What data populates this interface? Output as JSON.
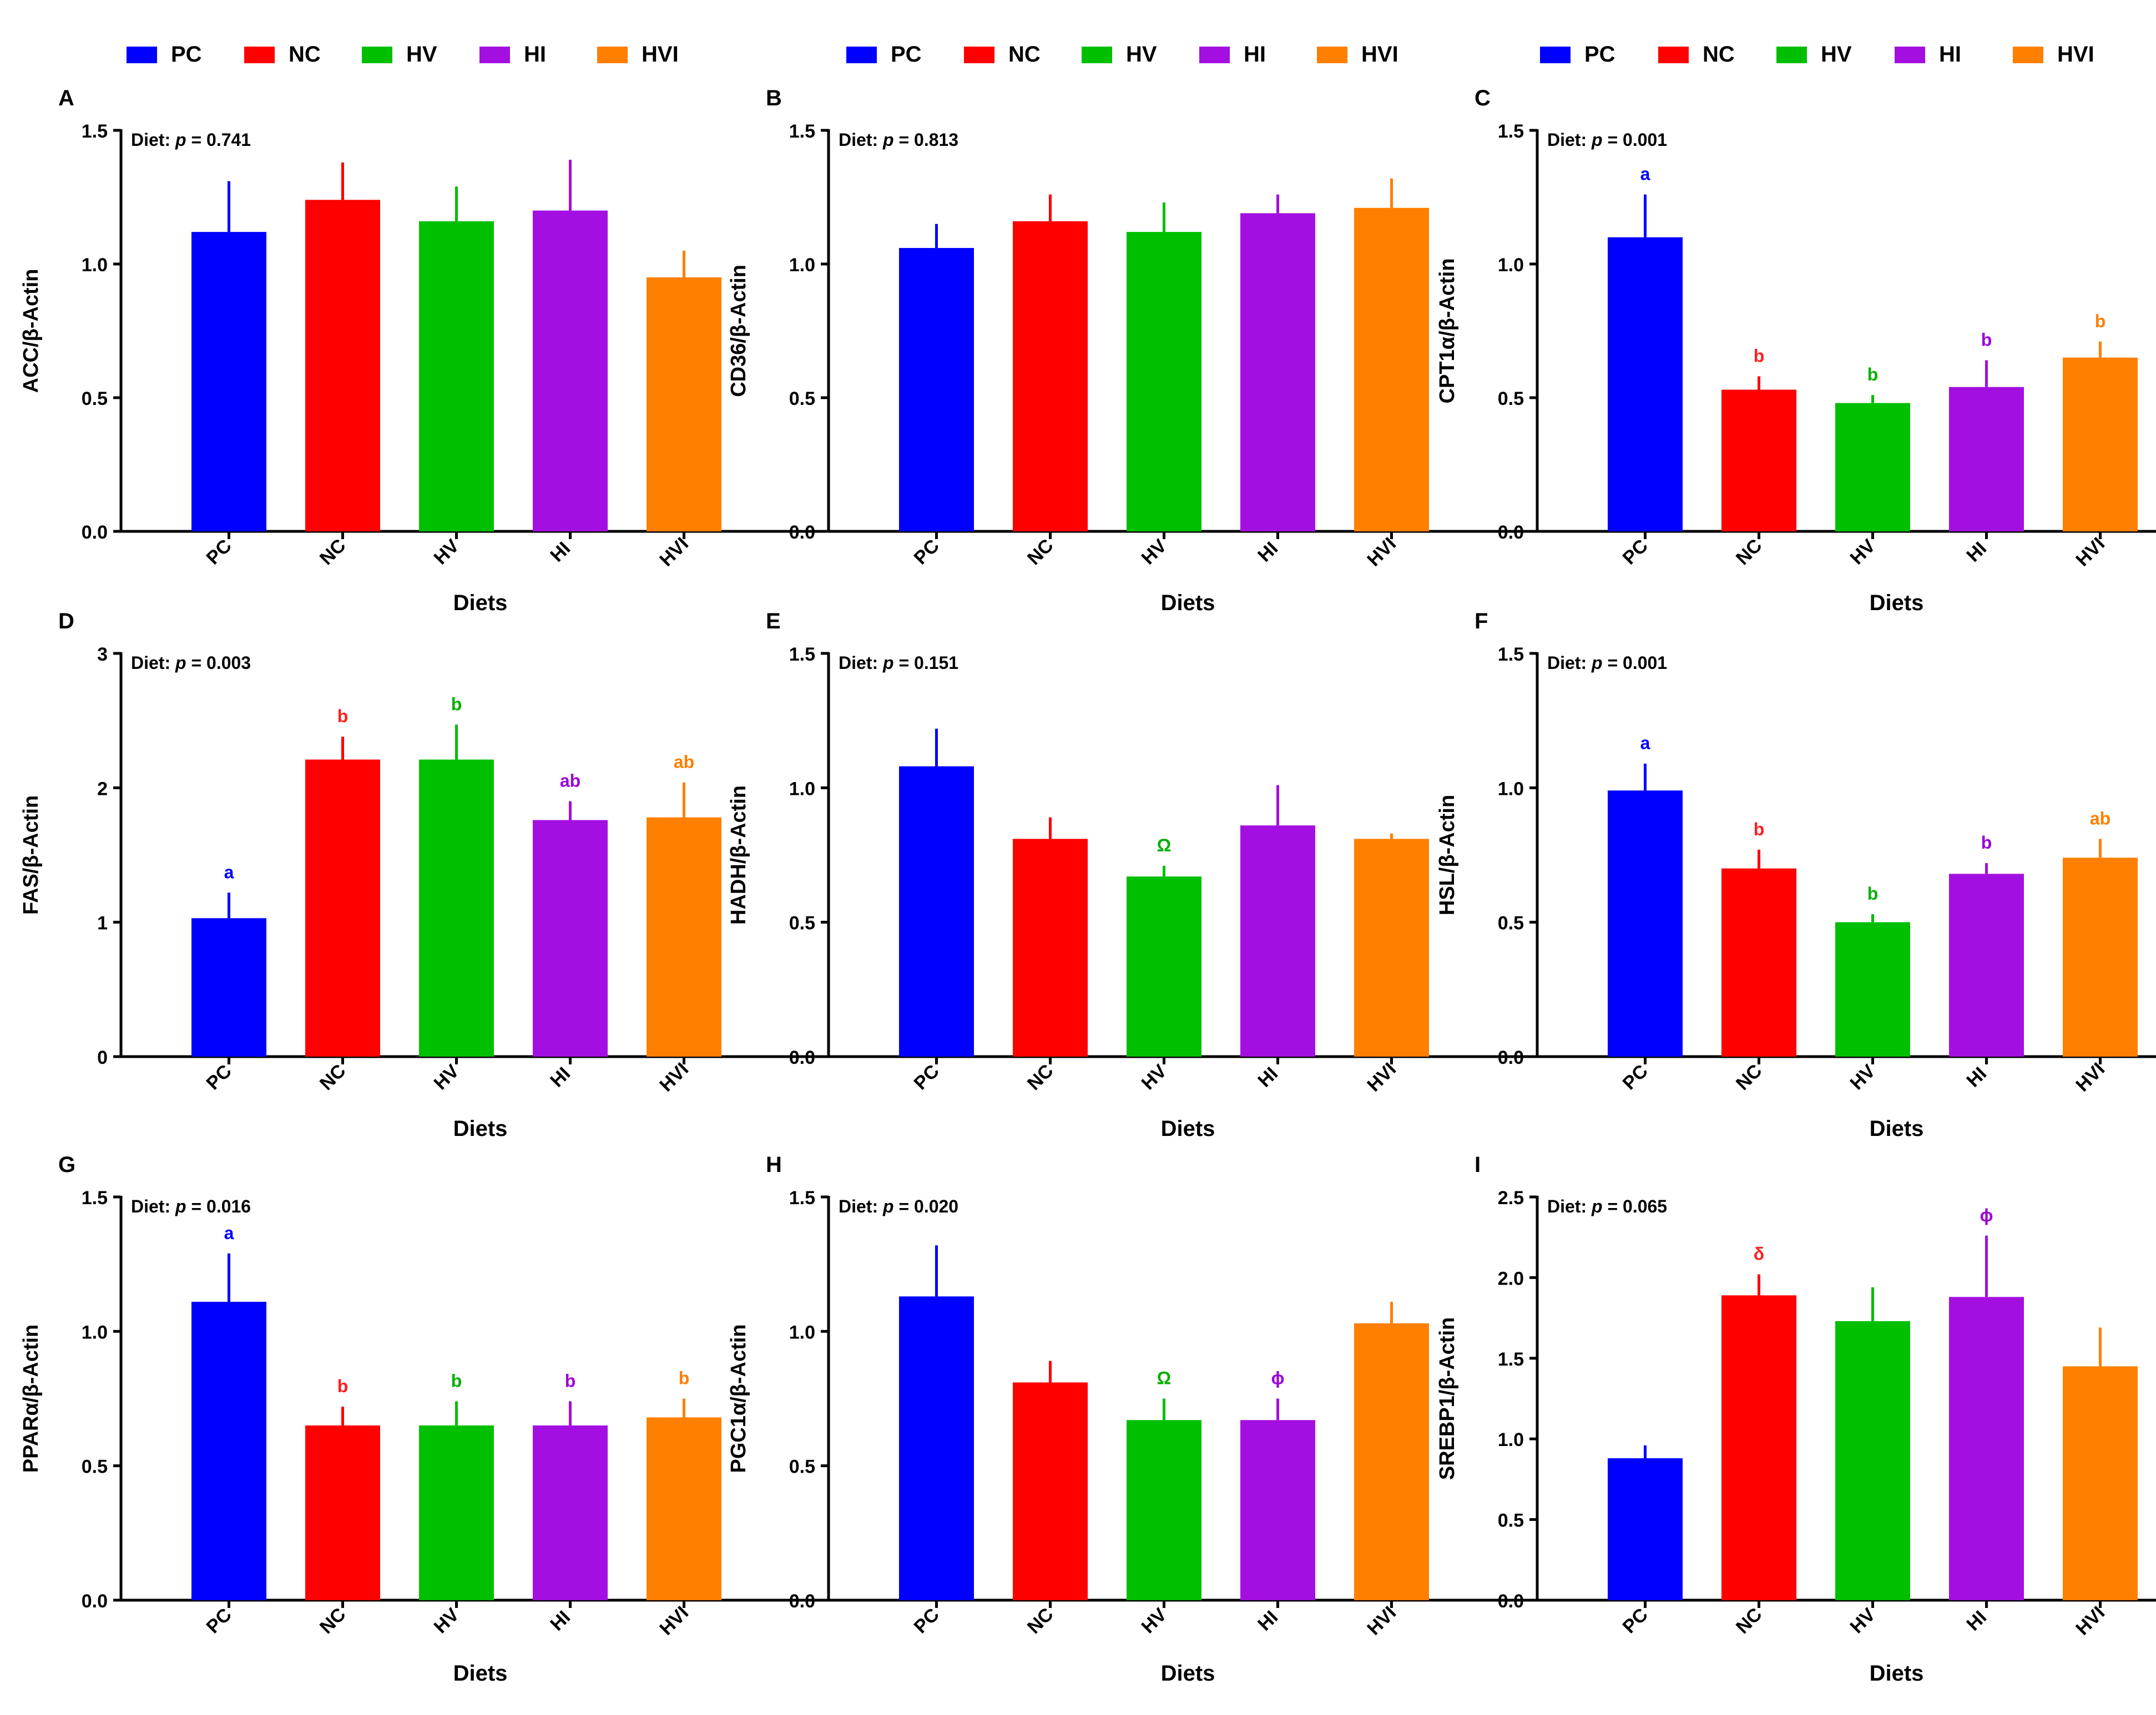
{
  "colors": {
    "PC": "#0000ff",
    "NC": "#ff0000",
    "HV": "#00bf00",
    "HI": "#a30fe0",
    "HVI": "#ff7f00",
    "axis": "#000000",
    "letter": {
      "PC": "#0000ff",
      "NC": "#ff2020",
      "HV": "#00b000",
      "HI": "#9b00d9",
      "HVI": "#ff7f00"
    }
  },
  "legend": {
    "entries": [
      {
        "key": "PC",
        "label": "PC"
      },
      {
        "key": "NC",
        "label": "NC"
      },
      {
        "key": "HV",
        "label": "HV"
      },
      {
        "key": "HI",
        "label": "HI"
      },
      {
        "key": "HVI",
        "label": "HVI"
      }
    ]
  },
  "chart_data": [
    {
      "panel": "A",
      "type": "bar",
      "title": "",
      "ylabel": "ACC/β-Actin",
      "xlabel": "Diets",
      "pvalue": {
        "prefix": "Diet: ",
        "p": "p",
        "rest": " = 0.741"
      },
      "ylim": [
        0,
        1.5
      ],
      "yticks": [
        "0.0",
        "0.5",
        "1.0",
        "1.5"
      ],
      "categories": [
        "PC",
        "NC",
        "HV",
        "HI",
        "HVI"
      ],
      "values": [
        1.12,
        1.24,
        1.16,
        1.2,
        0.95
      ],
      "errors": [
        0.19,
        0.14,
        0.13,
        0.19,
        0.1
      ],
      "letters": [
        "",
        "",
        "",
        "",
        ""
      ]
    },
    {
      "panel": "B",
      "type": "bar",
      "title": "",
      "ylabel": "CD36/β-Actin",
      "xlabel": "Diets",
      "pvalue": {
        "prefix": "Diet: ",
        "p": "p",
        "rest": " = 0.813"
      },
      "ylim": [
        0,
        1.5
      ],
      "yticks": [
        "0.0",
        "0.5",
        "1.0",
        "1.5"
      ],
      "categories": [
        "PC",
        "NC",
        "HV",
        "HI",
        "HVI"
      ],
      "values": [
        1.06,
        1.16,
        1.12,
        1.19,
        1.21
      ],
      "errors": [
        0.09,
        0.1,
        0.11,
        0.07,
        0.11
      ],
      "letters": [
        "",
        "",
        "",
        "",
        ""
      ]
    },
    {
      "panel": "C",
      "type": "bar",
      "title": "",
      "ylabel": "CPT1α/β-Actin",
      "xlabel": "Diets",
      "pvalue": {
        "prefix": "Diet: ",
        "p": "p",
        "rest": " = 0.001"
      },
      "ylim": [
        0,
        1.5
      ],
      "yticks": [
        "0.0",
        "0.5",
        "1.0",
        "1.5"
      ],
      "categories": [
        "PC",
        "NC",
        "HV",
        "HI",
        "HVI"
      ],
      "values": [
        1.1,
        0.53,
        0.48,
        0.54,
        0.65
      ],
      "errors": [
        0.16,
        0.05,
        0.03,
        0.1,
        0.06
      ],
      "letters": [
        "a",
        "b",
        "b",
        "b",
        "b"
      ]
    },
    {
      "panel": "D",
      "type": "bar",
      "title": "",
      "ylabel": "FAS/β-Actin",
      "xlabel": "Diets",
      "pvalue": {
        "prefix": "Diet: ",
        "p": "p",
        "rest": " = 0.003"
      },
      "ylim": [
        0,
        3
      ],
      "yticks": [
        "0",
        "1",
        "2",
        "3"
      ],
      "categories": [
        "PC",
        "NC",
        "HV",
        "HI",
        "HVI"
      ],
      "values": [
        1.03,
        2.21,
        2.21,
        1.76,
        1.78
      ],
      "errors": [
        0.19,
        0.17,
        0.26,
        0.14,
        0.26
      ],
      "letters": [
        "a",
        "b",
        "b",
        "ab",
        "ab"
      ]
    },
    {
      "panel": "E",
      "type": "bar",
      "title": "",
      "ylabel": "HADH/β-Actin",
      "xlabel": "Diets",
      "pvalue": {
        "prefix": "Diet: ",
        "p": "p",
        "rest": " = 0.151"
      },
      "ylim": [
        0,
        1.5
      ],
      "yticks": [
        "0.0",
        "0.5",
        "1.0",
        "1.5"
      ],
      "categories": [
        "PC",
        "NC",
        "HV",
        "HI",
        "HVI"
      ],
      "values": [
        1.08,
        0.81,
        0.67,
        0.86,
        0.81
      ],
      "errors": [
        0.14,
        0.08,
        0.04,
        0.15,
        0.02
      ],
      "letters": [
        "",
        "",
        "Ω",
        "",
        ""
      ]
    },
    {
      "panel": "F",
      "type": "bar",
      "title": "",
      "ylabel": "HSL/β-Actin",
      "xlabel": "Diets",
      "pvalue": {
        "prefix": "Diet: ",
        "p": "p",
        "rest": " = 0.001"
      },
      "ylim": [
        0,
        1.5
      ],
      "yticks": [
        "0.0",
        "0.5",
        "1.0",
        "1.5"
      ],
      "categories": [
        "PC",
        "NC",
        "HV",
        "HI",
        "HVI"
      ],
      "values": [
        0.99,
        0.7,
        0.5,
        0.68,
        0.74
      ],
      "errors": [
        0.1,
        0.07,
        0.03,
        0.04,
        0.07
      ],
      "letters": [
        "a",
        "b",
        "b",
        "b",
        "ab"
      ]
    },
    {
      "panel": "G",
      "type": "bar",
      "title": "",
      "ylabel": "PPARα/β-Actin",
      "xlabel": "Diets",
      "pvalue": {
        "prefix": "Diet: ",
        "p": "p",
        "rest": " = 0.016"
      },
      "ylim": [
        0,
        1.5
      ],
      "yticks": [
        "0.0",
        "0.5",
        "1.0",
        "1.5"
      ],
      "categories": [
        "PC",
        "NC",
        "HV",
        "HI",
        "HVI"
      ],
      "values": [
        1.11,
        0.65,
        0.65,
        0.65,
        0.68
      ],
      "errors": [
        0.18,
        0.07,
        0.09,
        0.09,
        0.07
      ],
      "letters": [
        "a",
        "b",
        "b",
        "b",
        "b"
      ]
    },
    {
      "panel": "H",
      "type": "bar",
      "title": "",
      "ylabel": "PGC1α/β-Actin",
      "xlabel": "Diets",
      "pvalue": {
        "prefix": "Diet: ",
        "p": "p",
        "rest": " = 0.020"
      },
      "ylim": [
        0,
        1.5
      ],
      "yticks": [
        "0.0",
        "0.5",
        "1.0",
        "1.5"
      ],
      "categories": [
        "PC",
        "NC",
        "HV",
        "HI",
        "HVI"
      ],
      "values": [
        1.13,
        0.81,
        0.67,
        0.67,
        1.03
      ],
      "errors": [
        0.19,
        0.08,
        0.08,
        0.08,
        0.08
      ],
      "letters": [
        "",
        "",
        "Ω",
        "ϕ",
        ""
      ]
    },
    {
      "panel": "I",
      "type": "bar",
      "title": "",
      "ylabel": "SREBP1/β-Actin",
      "xlabel": "Diets",
      "pvalue": {
        "prefix": "Diet: ",
        "p": "p",
        "rest": " = 0.065"
      },
      "ylim": [
        0,
        2.5
      ],
      "yticks": [
        "0.0",
        "0.5",
        "1.0",
        "1.5",
        "2.0",
        "2.5"
      ],
      "categories": [
        "PC",
        "NC",
        "HV",
        "HI",
        "HVI"
      ],
      "values": [
        0.88,
        1.89,
        1.73,
        1.88,
        1.45
      ],
      "errors": [
        0.08,
        0.13,
        0.21,
        0.38,
        0.24
      ],
      "letters": [
        "",
        "δ",
        "",
        "ϕ",
        ""
      ]
    }
  ]
}
